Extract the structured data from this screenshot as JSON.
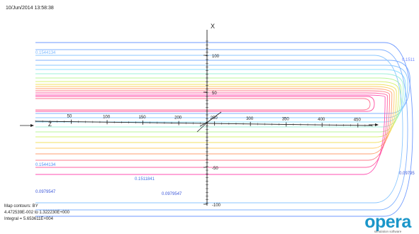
{
  "timestamp": "10/Jun/2014 13:58:38",
  "plot": {
    "axis_x_label": "X",
    "axis_z_label": "Z",
    "x_ticks": [
      "100",
      "50",
      "-50",
      "-100"
    ],
    "z_ticks": [
      "50",
      "100",
      "150",
      "200",
      "250",
      "300",
      "350",
      "400",
      "450"
    ],
    "contour_labels": [
      {
        "text": "0.1544134",
        "color": "#7ab8ff"
      },
      {
        "text": "0.1511",
        "color": "#6f88ff"
      },
      {
        "text": "0.1544134",
        "color": "#4c8ef5"
      },
      {
        "text": "0.1511841",
        "color": "#3f73e6"
      },
      {
        "text": "0.0979547",
        "color": "#3a55d9"
      },
      {
        "text": "0.0979547",
        "color": "#3a55d9"
      },
      {
        "text": "0.09795",
        "color": "#3a55d9"
      }
    ],
    "axis_color": "#222222"
  },
  "info": {
    "line1": "Map contours: BY",
    "line2": "4.472539E-002 to 1.322230E+000",
    "line3": "Integral = 5.653611E+004"
  },
  "logo": {
    "word": "opera",
    "tagline": "simulation software",
    "color": "#1a96c9"
  }
}
